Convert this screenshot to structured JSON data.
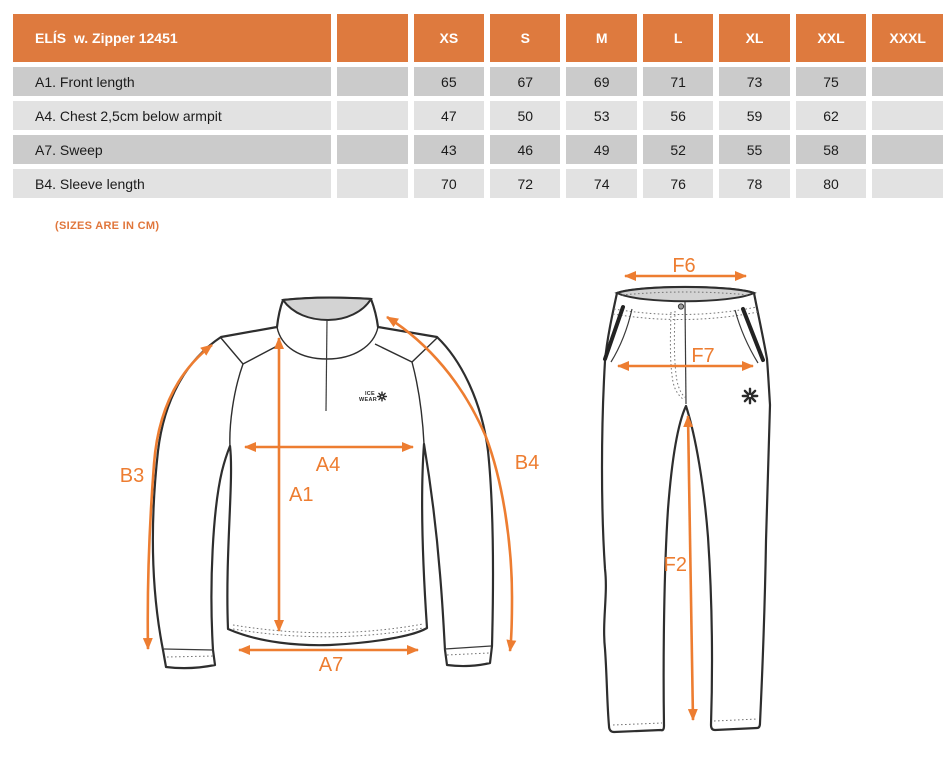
{
  "table": {
    "product": "ELÍS  w. Zipper 12451",
    "sizes": [
      "XS",
      "S",
      "M",
      "L",
      "XL",
      "XXL",
      "XXXL"
    ],
    "rows": [
      {
        "label": "A1. Front length",
        "values": [
          "65",
          "67",
          "69",
          "71",
          "73",
          "75",
          ""
        ]
      },
      {
        "label": "A4. Chest 2,5cm below armpit",
        "values": [
          "47",
          "50",
          "53",
          "56",
          "59",
          "62",
          ""
        ]
      },
      {
        "label": "A7. Sweep",
        "values": [
          "43",
          "46",
          "49",
          "52",
          "55",
          "58",
          ""
        ]
      },
      {
        "label": "B4. Sleeve length",
        "values": [
          "70",
          "72",
          "74",
          "76",
          "78",
          "80",
          ""
        ]
      }
    ]
  },
  "note": "(SIZES ARE IN CM)",
  "diagram_labels": {
    "A1": "A1",
    "A4": "A4",
    "A7": "A7",
    "B3": "B3",
    "B4": "B4",
    "F2": "F2",
    "F6": "F6",
    "F7": "F7"
  },
  "logo": {
    "line1": "ICE",
    "line2": "WEAR"
  },
  "colors": {
    "header_orange": "#DE7A3E",
    "arrow_orange": "#ED7D31",
    "note_orange": "#E0763B",
    "row_dark": "#CBCBCB",
    "row_light": "#E2E2E2",
    "outline": "#2E2E2E",
    "collar_gray": "#D3D3D3"
  },
  "chart_data": {
    "type": "table",
    "title": "ELÍS  w. Zipper 12451",
    "columns": [
      "XS",
      "S",
      "M",
      "L",
      "XL",
      "XXL",
      "XXXL"
    ],
    "rows": [
      {
        "label": "A1. Front length",
        "values": [
          65,
          67,
          69,
          71,
          73,
          75,
          null
        ]
      },
      {
        "label": "A4. Chest 2,5cm below armpit",
        "values": [
          47,
          50,
          53,
          56,
          59,
          62,
          null
        ]
      },
      {
        "label": "A7. Sweep",
        "values": [
          43,
          46,
          49,
          52,
          55,
          58,
          null
        ]
      },
      {
        "label": "B4. Sleeve length",
        "values": [
          70,
          72,
          74,
          76,
          78,
          80,
          null
        ]
      }
    ],
    "units": "cm"
  }
}
